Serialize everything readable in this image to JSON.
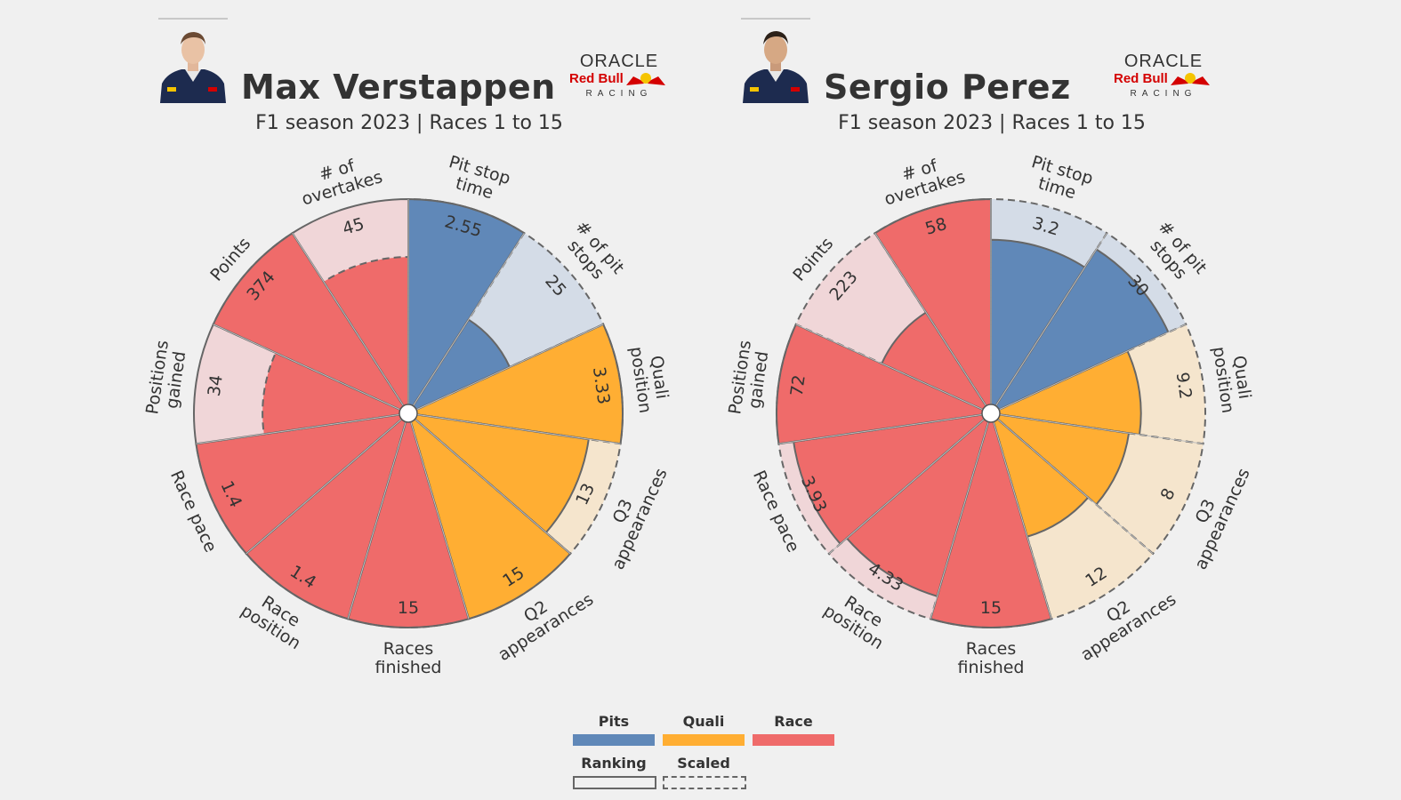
{
  "colors": {
    "pits": "#6088b8",
    "quali": "#ffae33",
    "race": "#ef6b6a",
    "pits_light": "#d4dce7",
    "quali_light": "#f5e5cd",
    "race_light": "#f0d6d8",
    "background": "#f0f0f0",
    "redbull_red": "#d40000",
    "redbull_yellow": "#f5c400"
  },
  "panels": [
    {
      "driver": "Max Verstappen",
      "subtitle": "F1 season 2023 | Races 1 to 15",
      "team_logo": {
        "top": "ORACLE",
        "middle": "Red Bull",
        "bottom": "RACING"
      },
      "photo": "driver-portrait"
    },
    {
      "driver": "Sergio Perez",
      "subtitle": "F1 season 2023 | Races 1 to 15",
      "team_logo": {
        "top": "ORACLE",
        "middle": "Red Bull",
        "bottom": "RACING"
      },
      "photo": "driver-portrait"
    }
  ],
  "chart_data": [
    {
      "type": "polar-bar",
      "title": "Max Verstappen",
      "subtitle": "F1 season 2023 | Races 1 to 15",
      "categories": [
        "Pit stop time",
        "# of pit stops",
        "Quali position",
        "Q3 appearances",
        "Q2 appearances",
        "Races finished",
        "Race position",
        "Race pace",
        "Positions gained",
        "Points",
        "# of overtakes"
      ],
      "category_labels": [
        [
          "Pit stop",
          "time"
        ],
        [
          "# of pit",
          "stops"
        ],
        [
          "Quali",
          "position"
        ],
        [
          "Q3",
          "appearances"
        ],
        [
          "Q2",
          "appearances"
        ],
        [
          "Races",
          "finished"
        ],
        [
          "Race",
          "position"
        ],
        [
          "Race pace"
        ],
        [
          "Positions",
          "gained"
        ],
        [
          "Points"
        ],
        [
          "# of",
          "overtakes"
        ]
      ],
      "groups": [
        "Pits",
        "Pits",
        "Quali",
        "Quali",
        "Quali",
        "Race",
        "Race",
        "Race",
        "Race",
        "Race",
        "Race"
      ],
      "value_labels": [
        "2.55",
        "25",
        "3.33",
        "13",
        "15",
        "15",
        "1.4",
        "1.4",
        "34",
        "374",
        "45"
      ],
      "ranking": [
        1.0,
        0.52,
        1.0,
        0.85,
        1.0,
        1.0,
        1.0,
        1.0,
        1.0,
        1.0,
        1.0
      ],
      "scaled": [
        1.0,
        1.0,
        1.0,
        1.0,
        1.0,
        1.0,
        1.0,
        1.0,
        0.68,
        1.0,
        0.73
      ]
    },
    {
      "type": "polar-bar",
      "title": "Sergio Perez",
      "subtitle": "F1 season 2023 | Races 1 to 15",
      "categories": [
        "Pit stop time",
        "# of pit stops",
        "Quali position",
        "Q3 appearances",
        "Q2 appearances",
        "Races finished",
        "Race position",
        "Race pace",
        "Positions gained",
        "Points",
        "# of overtakes"
      ],
      "category_labels": [
        [
          "Pit stop",
          "time"
        ],
        [
          "# of pit",
          "stops"
        ],
        [
          "Quali",
          "position"
        ],
        [
          "Q3",
          "appearances"
        ],
        [
          "Q2",
          "appearances"
        ],
        [
          "Races",
          "finished"
        ],
        [
          "Race",
          "position"
        ],
        [
          "Race pace"
        ],
        [
          "Positions",
          "gained"
        ],
        [
          "Points"
        ],
        [
          "# of",
          "overtakes"
        ]
      ],
      "groups": [
        "Pits",
        "Pits",
        "Quali",
        "Quali",
        "Quali",
        "Race",
        "Race",
        "Race",
        "Race",
        "Race",
        "Race"
      ],
      "value_labels": [
        "3.2",
        "30",
        "9.2",
        "8",
        "12",
        "15",
        "4.33",
        "3.93",
        "72",
        "223",
        "58"
      ],
      "ranking": [
        0.81,
        0.91,
        0.7,
        0.65,
        0.6,
        1.0,
        0.89,
        0.93,
        1.0,
        0.56,
        1.0
      ],
      "scaled": [
        1.0,
        1.0,
        1.0,
        1.0,
        1.0,
        1.0,
        1.0,
        1.0,
        1.0,
        1.0,
        1.0
      ]
    }
  ],
  "legend": {
    "items": [
      {
        "label": "Pits",
        "color": "#6088b8"
      },
      {
        "label": "Quali",
        "color": "#ffae33"
      },
      {
        "label": "Race",
        "color": "#ef6b6a"
      }
    ],
    "styles": [
      {
        "label": "Ranking",
        "line": "solid"
      },
      {
        "label": "Scaled",
        "line": "dashed"
      }
    ]
  }
}
